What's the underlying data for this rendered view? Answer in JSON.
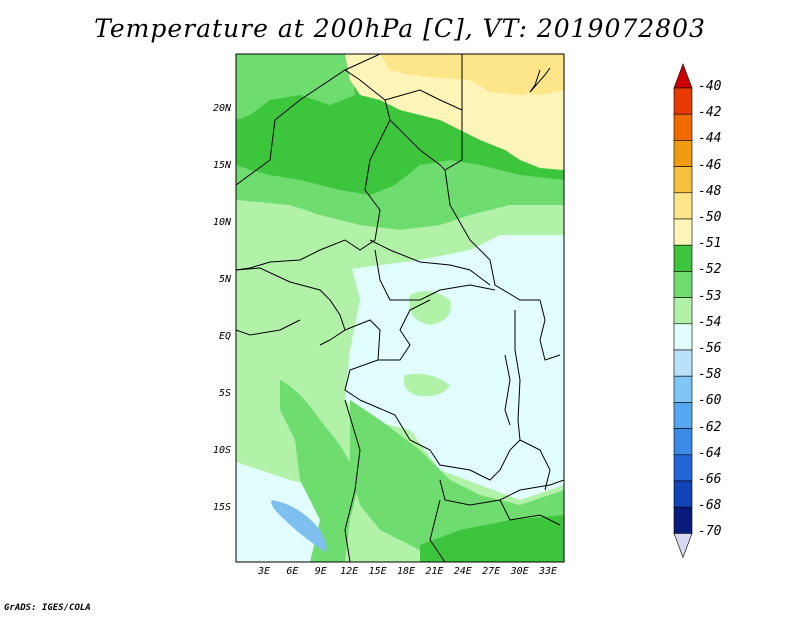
{
  "title": "Temperature at 200hPa [C], VT: 2019072803",
  "credit": "GrADS: IGES/COLA",
  "lat_labels": [
    "20N",
    "15N",
    "10N",
    "5N",
    "EQ",
    "5S",
    "10S",
    "15S"
  ],
  "lon_labels": [
    "3E",
    "6E",
    "9E",
    "12E",
    "15E",
    "18E",
    "21E",
    "24E",
    "27E",
    "30E",
    "33E"
  ],
  "colorbar": {
    "labels": [
      "-40",
      "-42",
      "-44",
      "-46",
      "-48",
      "-50",
      "-51",
      "-52",
      "-53",
      "-54",
      "-56",
      "-58",
      "-60",
      "-62",
      "-64",
      "-66",
      "-68",
      "-70"
    ],
    "colors": [
      "#cc0000",
      "#e83a00",
      "#f06a00",
      "#f29a10",
      "#f7c040",
      "#fde68a",
      "#fff5b8",
      "#3dc63d",
      "#6fdc6f",
      "#b2f2a8",
      "#e2fdfd",
      "#b8e2fa",
      "#7fc6f5",
      "#55a8f0",
      "#3b8ae6",
      "#2266d8",
      "#1144b4",
      "#081c80",
      "#d8d8f2"
    ]
  },
  "field_colors": {
    "band_50": "#fde68a",
    "band_51": "#fff5b8",
    "band_52": "#3dc63d",
    "band_53": "#6fdc6f",
    "band_54": "#b2f2a8",
    "band_56": "#e2fdfd",
    "band_58": "#b8e2fa",
    "lake": "#7fbff0"
  }
}
